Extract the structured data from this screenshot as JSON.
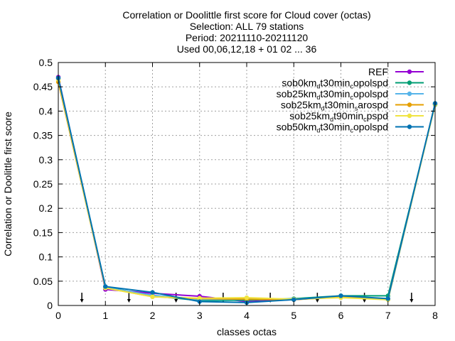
{
  "chart_data": {
    "type": "line",
    "title_lines": [
      "Correlation or Doolittle first score  for Cloud cover (octas)",
      "Selection: ALL     79 stations",
      "Period: 20211110-20211120",
      "Used 00,06,12,18 + 01 02 ... 36"
    ],
    "xlabel": "classes octas",
    "ylabel": "Correlation or Doolittle first score",
    "xlim": [
      0,
      8
    ],
    "ylim": [
      0,
      0.5
    ],
    "x_ticks": [
      0,
      1,
      2,
      3,
      4,
      5,
      6,
      7,
      8
    ],
    "x_tick_labels": [
      "0",
      "1",
      "2",
      "3",
      "4",
      "5",
      "6",
      "7",
      "8"
    ],
    "y_ticks": [
      0,
      0.05,
      0.1,
      0.15,
      0.2,
      0.25,
      0.3,
      0.35,
      0.4,
      0.45,
      0.5
    ],
    "y_tick_labels": [
      "0",
      "0.05",
      "0.1",
      "0.15",
      "0.2",
      "0.25",
      "0.3",
      "0.35",
      "0.4",
      "0.45",
      "0.5"
    ],
    "grid": true,
    "legend_position": "top-right",
    "x": [
      0,
      1,
      2,
      3,
      4,
      5,
      6,
      7,
      8
    ],
    "series": [
      {
        "name": "REF",
        "legend_parts": [
          [
            "REF",
            ""
          ]
        ],
        "color": "#9400d3",
        "values": [
          0.47,
          0.033,
          0.025,
          0.019,
          0.008,
          0.012,
          0.018,
          0.013,
          0.415
        ]
      },
      {
        "name": "sob0km_d t30min_c opolspd",
        "legend_parts": [
          [
            "sob0km",
            ""
          ],
          [
            "d",
            "sub"
          ],
          [
            "t30min",
            ""
          ],
          [
            "c",
            "sub"
          ],
          [
            "opolspd",
            ""
          ]
        ],
        "color": "#009e73",
        "values": [
          0.468,
          0.038,
          0.02,
          0.01,
          0.011,
          0.014,
          0.02,
          0.02,
          0.413
        ]
      },
      {
        "name": "sob25km_d t30min_c opolspd",
        "legend_parts": [
          [
            "sob25km",
            ""
          ],
          [
            "d",
            "sub"
          ],
          [
            "t30min",
            ""
          ],
          [
            "c",
            "sub"
          ],
          [
            "opolspd",
            ""
          ]
        ],
        "color": "#56b4e9",
        "values": [
          0.468,
          0.037,
          0.021,
          0.012,
          0.013,
          0.013,
          0.018,
          0.012,
          0.414
        ]
      },
      {
        "name": "sob25km_d t30min_s arospd",
        "legend_parts": [
          [
            "sob25km",
            ""
          ],
          [
            "d",
            "sub"
          ],
          [
            "t30min",
            ""
          ],
          [
            "s",
            "sub"
          ],
          [
            "arospd",
            ""
          ]
        ],
        "color": "#e69f00",
        "values": [
          0.46,
          0.036,
          0.018,
          0.014,
          0.013,
          0.012,
          0.017,
          0.013,
          0.414
        ]
      },
      {
        "name": "sob25km_d t90min_c pspd",
        "legend_parts": [
          [
            "sob25km",
            ""
          ],
          [
            "d",
            "sub"
          ],
          [
            "t90min",
            ""
          ],
          [
            "c",
            "sub"
          ],
          [
            "pspd",
            ""
          ]
        ],
        "color": "#f0e442",
        "values": [
          0.465,
          0.036,
          0.018,
          0.015,
          0.016,
          0.013,
          0.016,
          0.012,
          0.414
        ]
      },
      {
        "name": "sob50km_d t30min_c opolspd",
        "legend_parts": [
          [
            "sob50km",
            ""
          ],
          [
            "d",
            "sub"
          ],
          [
            "t30min",
            ""
          ],
          [
            "c",
            "sub"
          ],
          [
            "opolspd",
            ""
          ]
        ],
        "color": "#0072b2",
        "values": [
          0.468,
          0.039,
          0.027,
          0.008,
          0.006,
          0.012,
          0.02,
          0.014,
          0.416
        ]
      }
    ],
    "marker_arrows_x": [
      0.5,
      1.5,
      2.5,
      3.5,
      4.5,
      5.5,
      6.5,
      7.5
    ]
  }
}
